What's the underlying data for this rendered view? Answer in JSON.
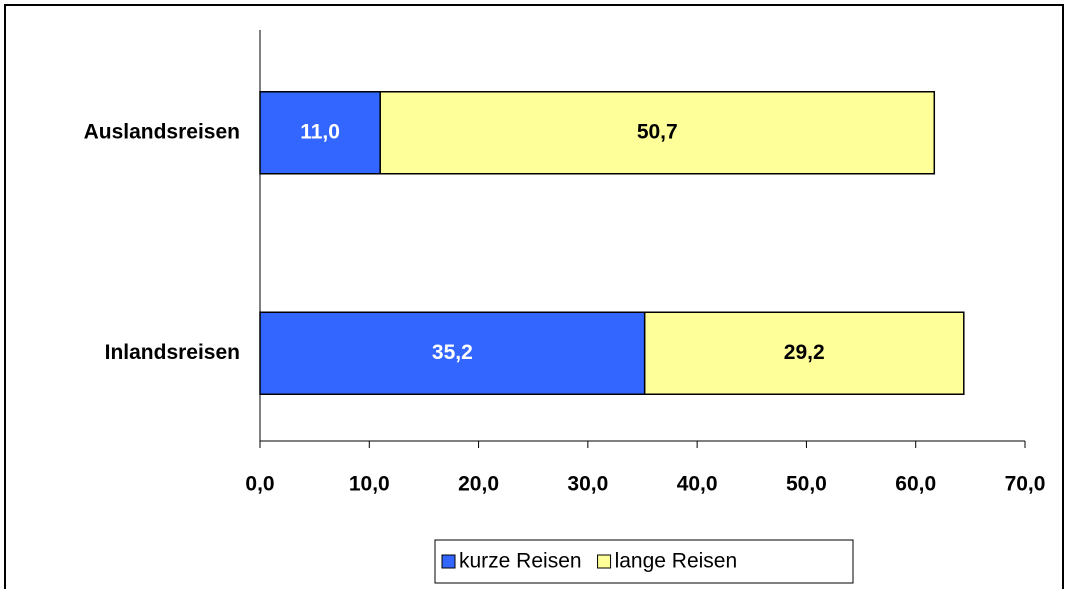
{
  "chart_data": {
    "type": "stacked-bar-horizontal",
    "categories": [
      "Auslandsreisen",
      "Inlandsreisen"
    ],
    "series": [
      {
        "name": "kurze Reisen",
        "color": "#3366ff",
        "values": [
          11.0,
          35.2
        ],
        "value_labels": [
          "11,0",
          "35,2"
        ]
      },
      {
        "name": "lange Reisen",
        "color": "#ffff99",
        "values": [
          50.7,
          29.2
        ],
        "value_labels": [
          "50,7",
          "29,2"
        ]
      }
    ],
    "xlim": [
      0,
      70
    ],
    "xticks": [
      {
        "value": 0,
        "label": "0,0"
      },
      {
        "value": 10,
        "label": "10,0"
      },
      {
        "value": 20,
        "label": "20,0"
      },
      {
        "value": 30,
        "label": "30,0"
      },
      {
        "value": 40,
        "label": "40,0"
      },
      {
        "value": 50,
        "label": "50,0"
      },
      {
        "value": 60,
        "label": "60,0"
      },
      {
        "value": 70,
        "label": "70,0"
      }
    ],
    "legend": "bottom"
  }
}
